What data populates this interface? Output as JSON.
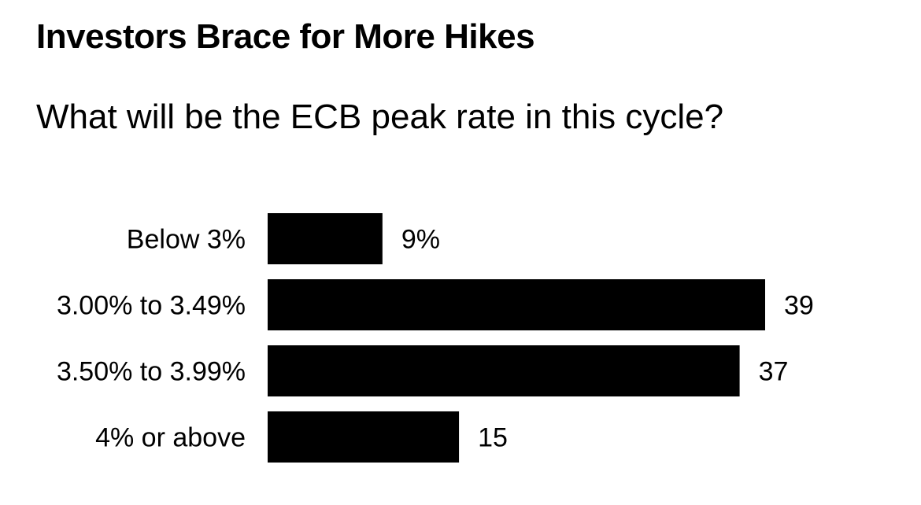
{
  "chart_data": {
    "type": "bar",
    "orientation": "horizontal",
    "title": "Investors Brace for More Hikes",
    "subtitle": "What will be the ECB peak rate in this cycle?",
    "categories": [
      "Below 3%",
      "3.00% to 3.49%",
      "3.50% to 3.99%",
      "4% or above"
    ],
    "values": [
      9,
      39,
      37,
      15
    ],
    "value_labels": [
      "9%",
      "39",
      "37",
      "15"
    ],
    "unit": "%",
    "xlim": [
      0,
      39
    ],
    "grid": false,
    "legend": "none",
    "bar_color": "#000000"
  }
}
